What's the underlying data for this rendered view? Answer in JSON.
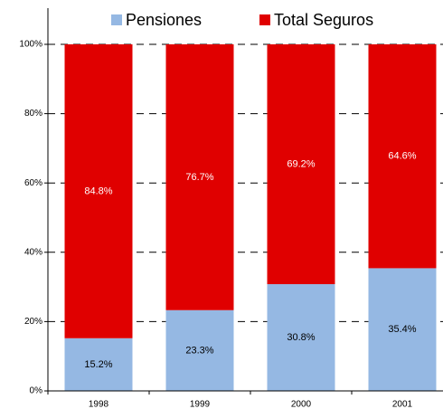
{
  "chart_data": {
    "type": "stacked_bar",
    "categories": [
      "1998",
      "1999",
      "2000",
      "2001"
    ],
    "series": [
      {
        "name": "Pensiones",
        "color": "#95b8e3",
        "values": [
          15.2,
          23.3,
          30.8,
          35.4
        ],
        "value_labels": [
          "15.2%",
          "23.3%",
          "30.8%",
          "35.4%"
        ]
      },
      {
        "name": "Total Seguros",
        "color": "#e00000",
        "values": [
          84.8,
          76.7,
          69.2,
          64.6
        ],
        "value_labels": [
          "84.8%",
          "76.7%",
          "69.2%",
          "64.6%"
        ]
      }
    ],
    "ylim": [
      0,
      100
    ],
    "yticks": [
      {
        "value": 0,
        "label": "0%"
      },
      {
        "value": 20,
        "label": "20%"
      },
      {
        "value": 40,
        "label": "40%"
      },
      {
        "value": 60,
        "label": "60%"
      },
      {
        "value": 80,
        "label": "80%"
      },
      {
        "value": 100,
        "label": "100%"
      }
    ],
    "grid": true
  }
}
